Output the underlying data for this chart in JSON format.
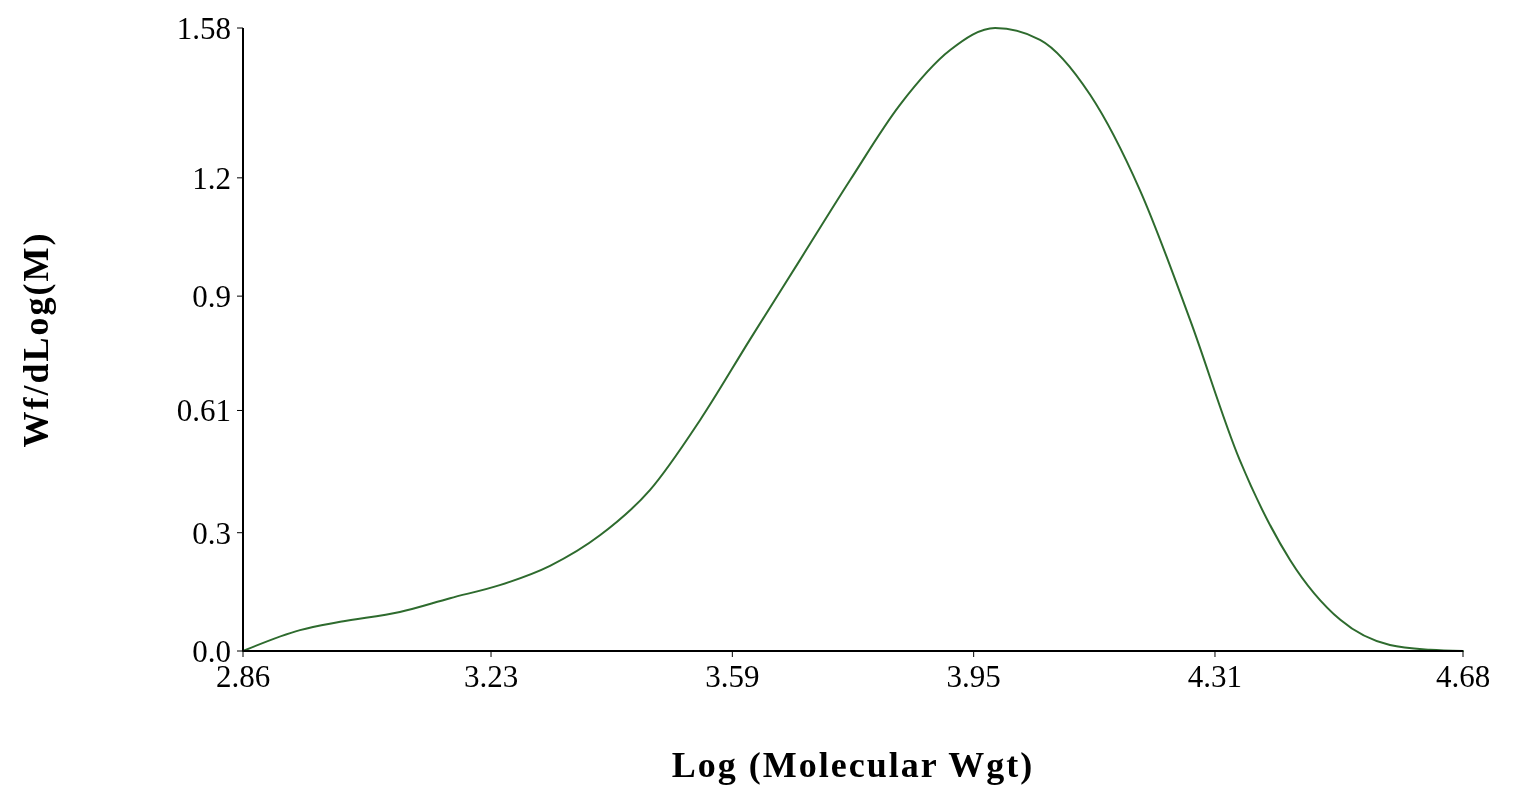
{
  "chart_data": {
    "type": "line",
    "xlabel": "Log (Molecular Wgt)",
    "ylabel": "Wf/dLog(M)",
    "x": [
      2.86,
      2.945,
      3.005,
      3.094,
      3.169,
      3.243,
      3.318,
      3.393,
      3.467,
      3.542,
      3.616,
      3.691,
      3.766,
      3.84,
      3.915,
      3.982,
      4.049,
      4.124,
      4.198,
      4.273,
      4.347,
      4.422,
      4.497,
      4.571,
      4.631,
      4.68
    ],
    "series": [
      {
        "color": "#2e6b2e",
        "values": [
          0,
          0.053,
          0.074,
          0.099,
          0.134,
          0.167,
          0.216,
          0.294,
          0.408,
          0.586,
          0.789,
          0.992,
          1.195,
          1.385,
          1.524,
          1.58,
          1.55,
          1.41,
          1.169,
          0.839,
          0.484,
          0.231,
          0.079,
          0.015,
          0.003,
          0
        ]
      }
    ],
    "xlim": [
      2.86,
      4.68
    ],
    "xticks": [
      2.86,
      3.23,
      3.59,
      3.95,
      4.31,
      4.68
    ],
    "ylim": [
      0,
      1.58
    ],
    "yticks": [
      {
        "value": 0,
        "label": "0.0"
      },
      0.3,
      0.61,
      0.9,
      1.2,
      1.58
    ],
    "grid": false,
    "marker": "none",
    "line_style": "solid"
  }
}
